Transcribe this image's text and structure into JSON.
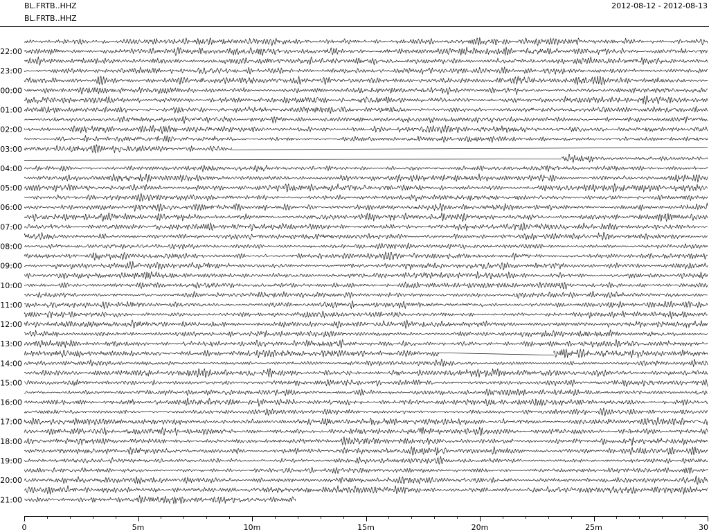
{
  "chart_data": {
    "type": "line",
    "title": "BL.FRTB..HHZ",
    "date_range": "2012-08-12 - 2012-08-13",
    "axes_title": "BL.FRTB..HHZ",
    "xlim": [
      0,
      30
    ],
    "x_ticks": [
      0,
      5,
      10,
      15,
      20,
      25,
      30
    ],
    "x_tick_labels": [
      "0",
      "5m",
      "10m",
      "15m",
      "20m",
      "25m",
      "30"
    ],
    "x_minor_tick_step": 1,
    "grid": false,
    "rows": [
      {
        "label": "",
        "waveform": [
          [
            0,
            30
          ]
        ]
      },
      {
        "label": "22:00",
        "waveform": [
          [
            0,
            30
          ]
        ]
      },
      {
        "label": "",
        "waveform": [
          [
            0,
            30
          ]
        ]
      },
      {
        "label": "23:00",
        "waveform": [
          [
            0,
            30
          ]
        ]
      },
      {
        "label": "",
        "waveform": [
          [
            0,
            30
          ]
        ]
      },
      {
        "label": "00:00",
        "waveform": [
          [
            0,
            30
          ]
        ]
      },
      {
        "label": "",
        "waveform": [
          [
            0,
            30
          ]
        ]
      },
      {
        "label": "01:00",
        "waveform": [
          [
            0,
            30
          ]
        ]
      },
      {
        "label": "",
        "waveform": [
          [
            0,
            30
          ]
        ]
      },
      {
        "label": "02:00",
        "waveform": [
          [
            0,
            30
          ]
        ]
      },
      {
        "label": "",
        "waveform": [
          [
            0,
            30
          ]
        ]
      },
      {
        "label": "03:00",
        "waveform": [
          [
            0,
            9.1
          ]
        ],
        "flat": [
          [
            9.1,
            30
          ]
        ]
      },
      {
        "label": "",
        "flat": [
          [
            0,
            23.6
          ]
        ],
        "waveform": [
          [
            23.6,
            30
          ]
        ]
      },
      {
        "label": "04:00",
        "waveform": [
          [
            0,
            30
          ]
        ]
      },
      {
        "label": "",
        "waveform": [
          [
            0,
            30
          ]
        ]
      },
      {
        "label": "05:00",
        "waveform": [
          [
            0,
            30
          ]
        ]
      },
      {
        "label": "",
        "waveform": [
          [
            0,
            30
          ]
        ]
      },
      {
        "label": "06:00",
        "waveform": [
          [
            0,
            30
          ]
        ]
      },
      {
        "label": "",
        "waveform": [
          [
            0,
            30
          ]
        ]
      },
      {
        "label": "07:00",
        "waveform": [
          [
            0,
            30
          ]
        ]
      },
      {
        "label": "",
        "waveform": [
          [
            0,
            30
          ]
        ]
      },
      {
        "label": "08:00",
        "waveform": [
          [
            0,
            30
          ]
        ]
      },
      {
        "label": "",
        "waveform": [
          [
            0,
            30
          ]
        ]
      },
      {
        "label": "09:00",
        "waveform": [
          [
            0,
            30
          ]
        ]
      },
      {
        "label": "",
        "waveform": [
          [
            0,
            30
          ]
        ]
      },
      {
        "label": "10:00",
        "waveform": [
          [
            0,
            30
          ]
        ]
      },
      {
        "label": "",
        "waveform": [
          [
            0,
            30
          ]
        ]
      },
      {
        "label": "11:00",
        "waveform": [
          [
            0,
            30
          ]
        ]
      },
      {
        "label": "",
        "waveform": [
          [
            0,
            30
          ]
        ]
      },
      {
        "label": "12:00",
        "waveform": [
          [
            0,
            30
          ]
        ]
      },
      {
        "label": "",
        "waveform": [
          [
            0,
            30
          ]
        ]
      },
      {
        "label": "13:00",
        "waveform": [
          [
            0,
            30
          ]
        ]
      },
      {
        "label": "",
        "waveform": [
          [
            0,
            18.2
          ],
          [
            23.25,
            30
          ]
        ],
        "flat": [
          [
            18.2,
            23.25
          ]
        ]
      },
      {
        "label": "14:00",
        "waveform": [
          [
            0,
            30
          ]
        ]
      },
      {
        "label": "",
        "waveform": [
          [
            0,
            30
          ]
        ]
      },
      {
        "label": "15:00",
        "waveform": [
          [
            0,
            30
          ]
        ]
      },
      {
        "label": "",
        "waveform": [
          [
            0,
            30
          ]
        ]
      },
      {
        "label": "16:00",
        "waveform": [
          [
            0,
            30
          ]
        ]
      },
      {
        "label": "",
        "waveform": [
          [
            0,
            30
          ]
        ]
      },
      {
        "label": "17:00",
        "waveform": [
          [
            0,
            30
          ]
        ]
      },
      {
        "label": "",
        "waveform": [
          [
            0,
            30
          ]
        ]
      },
      {
        "label": "18:00",
        "waveform": [
          [
            0,
            30
          ]
        ]
      },
      {
        "label": "",
        "waveform": [
          [
            0,
            30
          ]
        ]
      },
      {
        "label": "19:00",
        "waveform": [
          [
            0,
            30
          ]
        ]
      },
      {
        "label": "",
        "waveform": [
          [
            0,
            30
          ]
        ]
      },
      {
        "label": "20:00",
        "waveform": [
          [
            0,
            30
          ]
        ]
      },
      {
        "label": "",
        "waveform": [
          [
            0,
            30
          ]
        ]
      },
      {
        "label": "21:00",
        "waveform": [
          [
            0,
            11.9
          ]
        ]
      }
    ]
  },
  "colors": {
    "trace": "#2b2b2b",
    "axis": "#000000",
    "background": "#ffffff"
  }
}
